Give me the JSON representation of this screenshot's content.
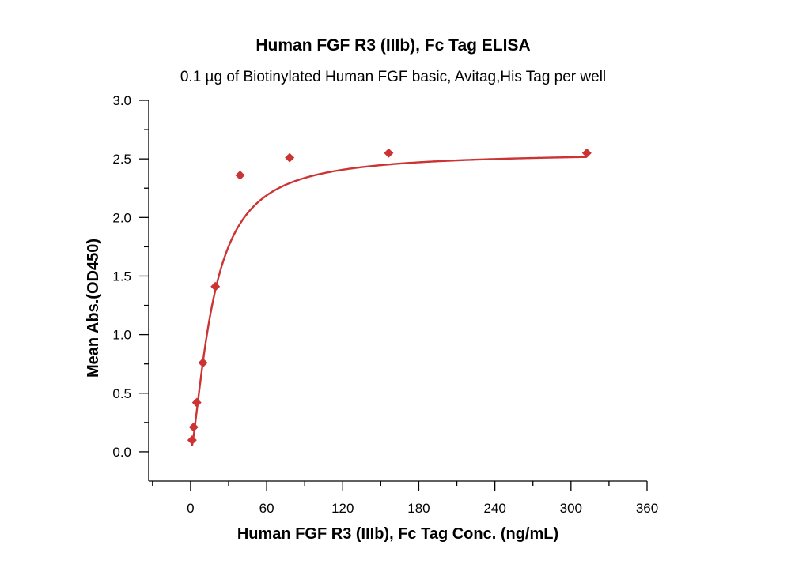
{
  "chart_data": {
    "type": "scatter",
    "title": "Human FGF R3 (IIIb), Fc Tag ELISA",
    "subtitle": "0.1 µg of Biotinylated Human FGF basic, Avitag,His Tag per well",
    "xlabel": "Human FGF R3 (IIIb), Fc Tag Conc. (ng/mL)",
    "ylabel": "Mean Abs.(OD450)",
    "xlim": [
      -33,
      360
    ],
    "ylim": [
      -0.25,
      3.0
    ],
    "x_ticks": [
      0,
      60,
      120,
      180,
      240,
      300,
      360
    ],
    "y_ticks": [
      0.0,
      0.5,
      1.0,
      1.5,
      2.0,
      2.5,
      3.0
    ],
    "x_tick_labels": [
      "0",
      "60",
      "120",
      "180",
      "240",
      "300",
      "360"
    ],
    "y_tick_labels": [
      "0.0",
      "0.5",
      "1.0",
      "1.5",
      "2.0",
      "2.5",
      "3.0"
    ],
    "grid": false,
    "series": [
      {
        "marker": "diamond",
        "color": "#cc3333",
        "x": [
          1.22,
          2.44,
          4.88,
          9.77,
          19.53,
          39.06,
          78.13,
          156.25,
          312.5
        ],
        "y": [
          0.1,
          0.21,
          0.42,
          0.76,
          1.41,
          2.36,
          2.51,
          2.55,
          2.55
        ]
      }
    ],
    "fit_curve": {
      "color": "#cc3333",
      "model": "4PL",
      "bottom": 0.0,
      "top": 2.555,
      "ec50": 17.5,
      "hill": 1.45
    }
  }
}
